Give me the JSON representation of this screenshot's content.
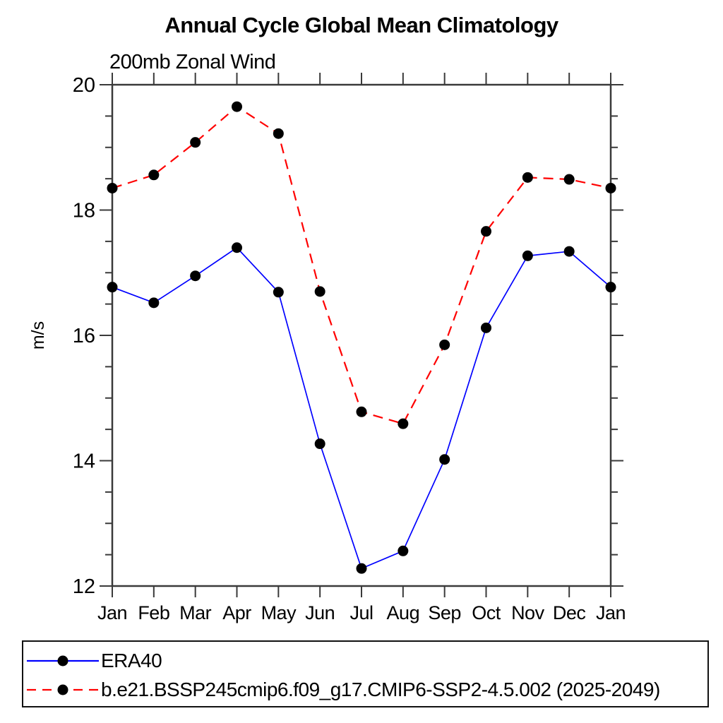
{
  "chart": {
    "title": "Annual Cycle Global Mean Climatology",
    "subtitle": "200mb Zonal Wind"
  },
  "chart_data": {
    "type": "line",
    "title": "Annual Cycle Global Mean Climatology",
    "subtitle": "200mb Zonal Wind",
    "xlabel": "",
    "ylabel": "m/s",
    "categories": [
      "Jan",
      "Feb",
      "Mar",
      "Apr",
      "May",
      "Jun",
      "Jul",
      "Aug",
      "Sep",
      "Oct",
      "Nov",
      "Dec",
      "Jan"
    ],
    "ylim": [
      12,
      20
    ],
    "y_major_ticks": [
      12,
      14,
      16,
      18,
      20
    ],
    "y_minor_step": 0.5,
    "grid": false,
    "legend_position": "bottom",
    "axis_color": "#3a3a3a",
    "text_color": "#000000",
    "series": [
      {
        "name": "ERA40",
        "color": "#0000ff",
        "line_style": "solid",
        "line_width": 1.7,
        "marker": "filled-circle",
        "marker_color": "#000000",
        "values": [
          16.77,
          16.52,
          16.95,
          17.4,
          16.69,
          14.27,
          12.28,
          12.56,
          14.02,
          16.12,
          17.27,
          17.34,
          16.77
        ]
      },
      {
        "name": "b.e21.BSSP245cmip6.f09_g17.CMIP6-SSP2-4.5.002 (2025-2049)",
        "color": "#ff0000",
        "line_style": "dashed",
        "line_width": 2.2,
        "marker": "filled-circle",
        "marker_color": "#000000",
        "values": [
          18.35,
          18.56,
          19.08,
          19.65,
          19.22,
          16.7,
          14.78,
          14.59,
          15.85,
          17.66,
          18.52,
          18.49,
          18.35
        ]
      }
    ]
  }
}
